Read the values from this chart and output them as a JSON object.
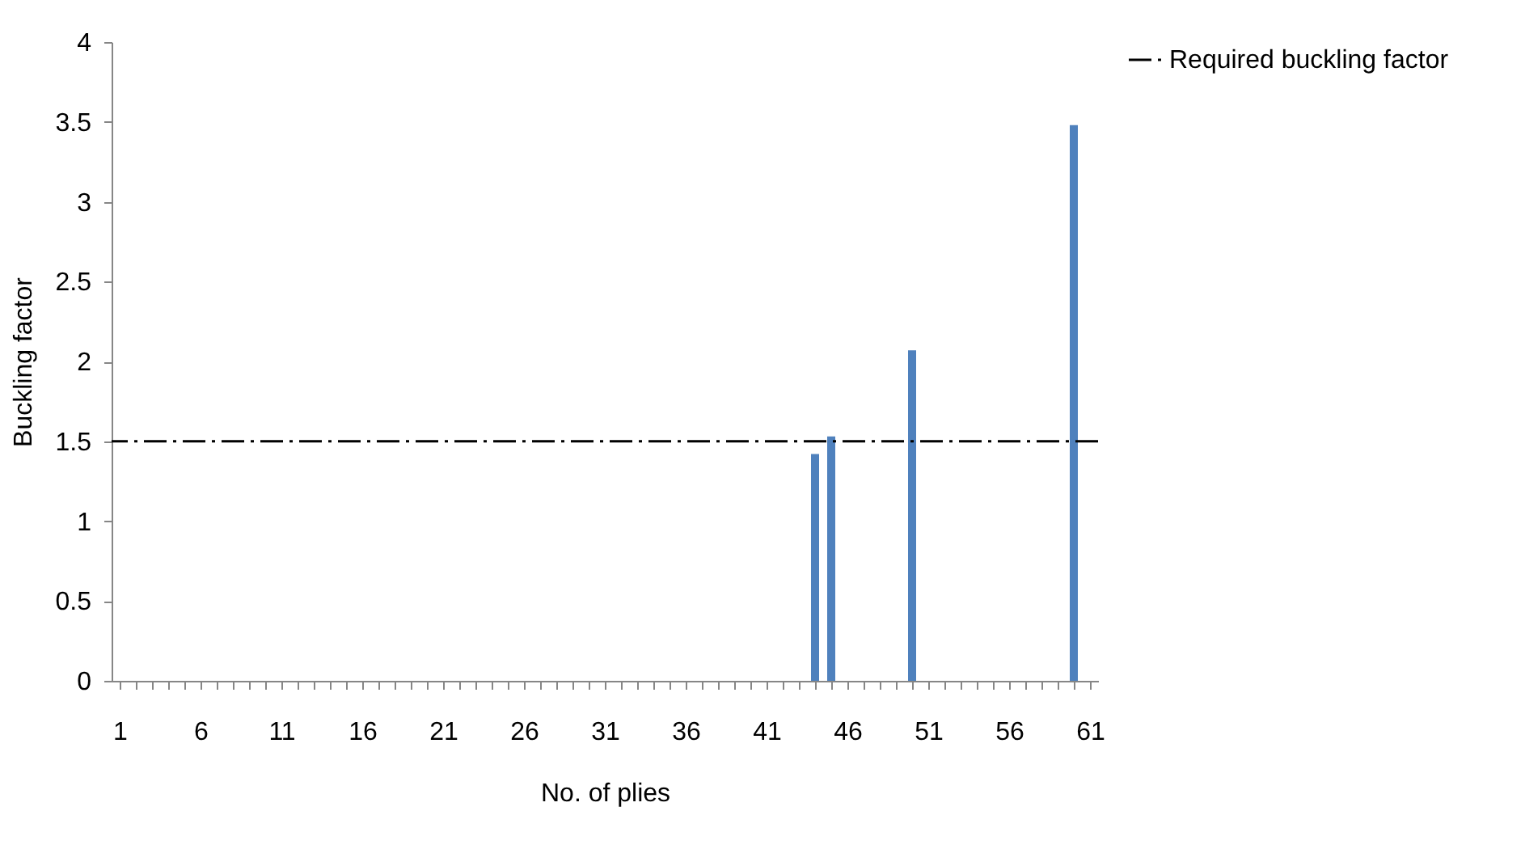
{
  "chart_data": {
    "type": "bar",
    "xlabel": "No. of plies",
    "ylabel": "Buckling factor",
    "x": [
      44,
      45,
      50,
      60
    ],
    "values": [
      1.42,
      1.53,
      2.07,
      3.48
    ],
    "color": "#4f81bd",
    "xlim": [
      0.5,
      61.5
    ],
    "xticks": [
      1,
      {
        "value": 2,
        "label": null
      },
      {
        "value": 3,
        "label": null
      },
      {
        "value": 4,
        "label": null
      },
      {
        "value": 5,
        "label": null
      },
      6,
      {
        "value": 7,
        "label": null
      },
      {
        "value": 8,
        "label": null
      },
      {
        "value": 9,
        "label": null
      },
      {
        "value": 10,
        "label": null
      },
      11,
      {
        "value": 12,
        "label": null
      },
      {
        "value": 13,
        "label": null
      },
      {
        "value": 14,
        "label": null
      },
      {
        "value": 15,
        "label": null
      },
      16,
      {
        "value": 17,
        "label": null
      },
      {
        "value": 18,
        "label": null
      },
      {
        "value": 19,
        "label": null
      },
      {
        "value": 20,
        "label": null
      },
      21,
      {
        "value": 22,
        "label": null
      },
      {
        "value": 23,
        "label": null
      },
      {
        "value": 24,
        "label": null
      },
      {
        "value": 25,
        "label": null
      },
      26,
      {
        "value": 27,
        "label": null
      },
      {
        "value": 28,
        "label": null
      },
      {
        "value": 29,
        "label": null
      },
      {
        "value": 30,
        "label": null
      },
      31,
      {
        "value": 32,
        "label": null
      },
      {
        "value": 33,
        "label": null
      },
      {
        "value": 34,
        "label": null
      },
      {
        "value": 35,
        "label": null
      },
      36,
      {
        "value": 37,
        "label": null
      },
      {
        "value": 38,
        "label": null
      },
      {
        "value": 39,
        "label": null
      },
      {
        "value": 40,
        "label": null
      },
      41,
      {
        "value": 42,
        "label": null
      },
      {
        "value": 43,
        "label": null
      },
      {
        "value": 44,
        "label": null
      },
      {
        "value": 45,
        "label": null
      },
      46,
      {
        "value": 47,
        "label": null
      },
      {
        "value": 48,
        "label": null
      },
      {
        "value": 49,
        "label": null
      },
      {
        "value": 50,
        "label": null
      },
      51,
      {
        "value": 52,
        "label": null
      },
      {
        "value": 53,
        "label": null
      },
      {
        "value": 54,
        "label": null
      },
      {
        "value": 55,
        "label": null
      },
      56,
      {
        "value": 57,
        "label": null
      },
      {
        "value": 58,
        "label": null
      },
      {
        "value": 59,
        "label": null
      },
      {
        "value": 60,
        "label": null
      },
      61
    ],
    "ylim": [
      0,
      4
    ],
    "yticks": [
      0,
      0.5,
      1,
      1.5,
      2,
      2.5,
      3,
      3.5,
      4
    ],
    "ref_lines": [
      {
        "axis": "y",
        "value": 1.5,
        "label": "Required buckling factor",
        "color": "#000000",
        "line_style": "dashdot"
      }
    ],
    "grid": false,
    "legend": "right"
  }
}
